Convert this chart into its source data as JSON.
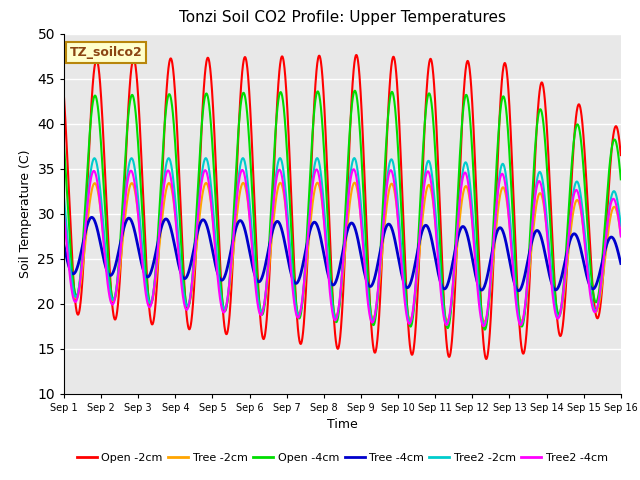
{
  "title": "Tonzi Soil CO2 Profile: Upper Temperatures",
  "xlabel": "Time",
  "ylabel": "Soil Temperature (C)",
  "ylim": [
    10,
    50
  ],
  "xlim": [
    0,
    15
  ],
  "xtick_labels": [
    "Sep 1",
    "Sep 2",
    "Sep 3",
    "Sep 4",
    "Sep 5",
    "Sep 6",
    "Sep 7",
    "Sep 8",
    "Sep 9",
    "Sep 10",
    "Sep 11",
    "Sep 12",
    "Sep 13",
    "Sep 14",
    "Sep 15",
    "Sep 16"
  ],
  "annotation": "TZ_soilco2",
  "background_color": "#e8e8e8",
  "series": [
    {
      "label": "Open -2cm",
      "color": "#ff0000"
    },
    {
      "label": "Tree -2cm",
      "color": "#ffa500"
    },
    {
      "label": "Open -4cm",
      "color": "#00dd00"
    },
    {
      "label": "Tree -4cm",
      "color": "#0000cc"
    },
    {
      "label": "Tree2 -2cm",
      "color": "#00cccc"
    },
    {
      "label": "Tree2 -4cm",
      "color": "#ff00ff"
    }
  ],
  "n_points": 2160,
  "days": 15
}
